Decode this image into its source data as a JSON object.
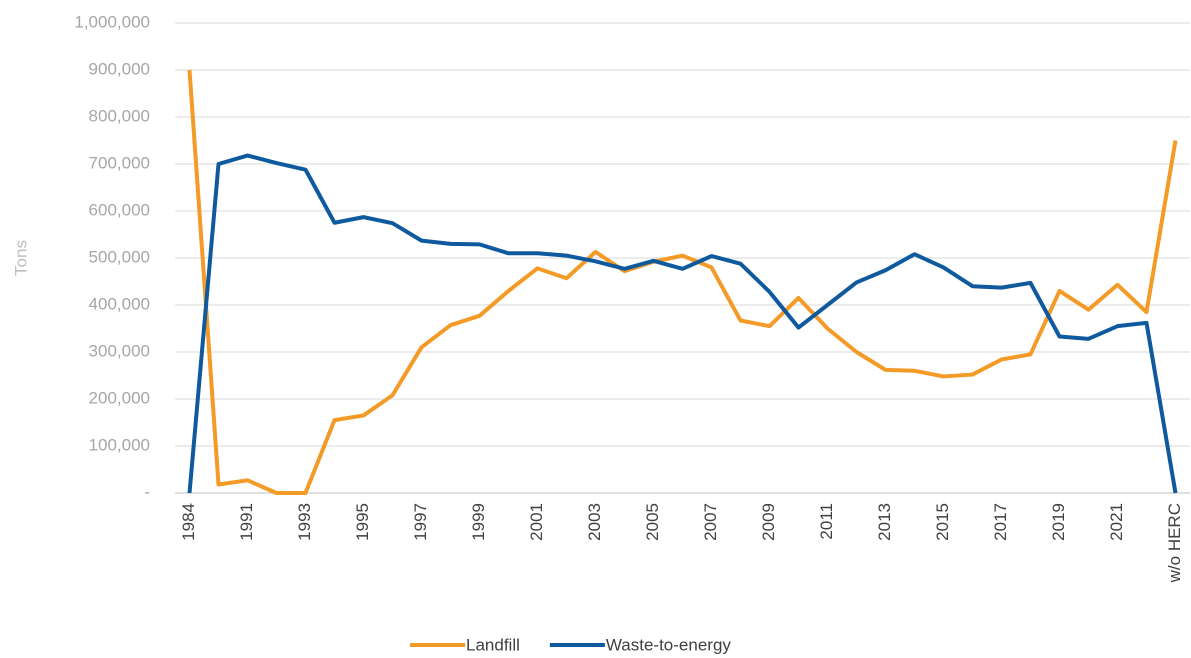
{
  "chart_data": {
    "type": "line",
    "y_label": "Tons",
    "categories": [
      "1984",
      null,
      "1991",
      null,
      "1993",
      null,
      "1995",
      null,
      "1997",
      null,
      "1999",
      null,
      "2001",
      null,
      "2003",
      null,
      "2005",
      null,
      "2007",
      null,
      "2009",
      null,
      "2011",
      null,
      "2013",
      null,
      "2015",
      null,
      "2017",
      null,
      "2019",
      null,
      "2021",
      null,
      "w/o HERC"
    ],
    "series": [
      {
        "name": "Landfill",
        "color": "#f39a27",
        "values": [
          900000,
          18000,
          27000,
          0,
          0,
          155000,
          165000,
          208000,
          310000,
          357000,
          377000,
          430000,
          478000,
          457000,
          513000,
          472000,
          492000,
          505000,
          480000,
          367000,
          355000,
          415000,
          350000,
          300000,
          262000,
          260000,
          248000,
          252000,
          284000,
          295000,
          430000,
          390000,
          443000,
          385000,
          750000
        ]
      },
      {
        "name": "Waste-to-energy",
        "color": "#0f5a9e",
        "values": [
          0,
          700000,
          718000,
          702000,
          688000,
          575000,
          587000,
          574000,
          537000,
          530000,
          529000,
          510000,
          510000,
          505000,
          493000,
          477000,
          494000,
          477000,
          504000,
          488000,
          428000,
          352000,
          400000,
          448000,
          474000,
          508000,
          480000,
          440000,
          437000,
          447000,
          333000,
          328000,
          355000,
          362000,
          0
        ]
      }
    ],
    "ylim": [
      0,
      1000000
    ],
    "yticks": [
      {
        "value": 0,
        "label": "-"
      },
      {
        "value": 100000,
        "label": "100,000"
      },
      {
        "value": 200000,
        "label": "200,000"
      },
      {
        "value": 300000,
        "label": "300,000"
      },
      {
        "value": 400000,
        "label": "400,000"
      },
      {
        "value": 500000,
        "label": "500,000"
      },
      {
        "value": 600000,
        "label": "600,000"
      },
      {
        "value": 700000,
        "label": "700,000"
      },
      {
        "value": 800000,
        "label": "800,000"
      },
      {
        "value": 900000,
        "label": "900,000"
      },
      {
        "value": 1000000,
        "label": "1,000,000"
      }
    ],
    "grid": true,
    "legend": "bottom"
  }
}
